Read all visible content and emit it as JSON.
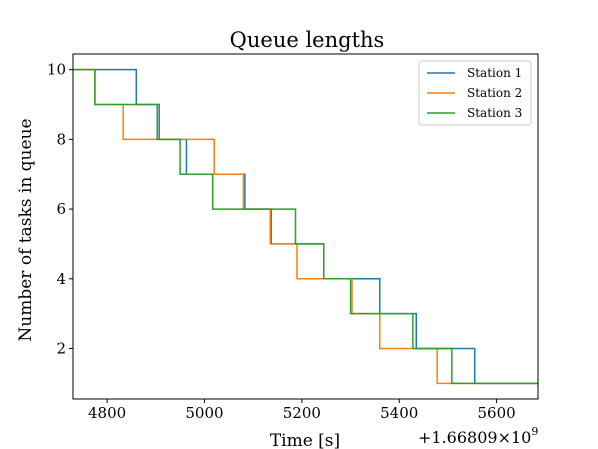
{
  "chart_data": {
    "type": "line",
    "title": "Queue lengths",
    "xlabel": "Time [s]",
    "ylabel": "Number of tasks in queue",
    "x_offset_label": "+1.66809×10",
    "x_offset_exponent": "9",
    "xlim": [
      4730,
      5685
    ],
    "ylim": [
      0.55,
      10.45
    ],
    "xticks": [
      4800,
      5000,
      5200,
      5400,
      5600
    ],
    "yticks": [
      2,
      4,
      6,
      8,
      10
    ],
    "grid": false,
    "legend_position": "top-right",
    "step": "post",
    "series": [
      {
        "name": "Station 1",
        "color": "#1f77b4",
        "points": [
          [
            4730,
            10
          ],
          [
            4860,
            9
          ],
          [
            4907,
            8
          ],
          [
            4963,
            7
          ],
          [
            5083,
            6
          ],
          [
            5137,
            5
          ],
          [
            5245,
            4
          ],
          [
            5360,
            3
          ],
          [
            5435,
            2
          ],
          [
            5555,
            1
          ],
          [
            5685,
            1
          ]
        ]
      },
      {
        "name": "Station 2",
        "color": "#ff7f0e",
        "points": [
          [
            4730,
            10
          ],
          [
            4775,
            9
          ],
          [
            4833,
            8
          ],
          [
            5020,
            7
          ],
          [
            5080,
            6
          ],
          [
            5135,
            5
          ],
          [
            5190,
            4
          ],
          [
            5303,
            3
          ],
          [
            5360,
            2
          ],
          [
            5478,
            1
          ],
          [
            5685,
            1
          ]
        ]
      },
      {
        "name": "Station 3",
        "color": "#2ca02c",
        "points": [
          [
            4730,
            10
          ],
          [
            4775,
            9
          ],
          [
            4903,
            8
          ],
          [
            4950,
            7
          ],
          [
            5017,
            6
          ],
          [
            5187,
            5
          ],
          [
            5245,
            4
          ],
          [
            5300,
            3
          ],
          [
            5428,
            2
          ],
          [
            5508,
            1
          ],
          [
            5685,
            1
          ]
        ]
      }
    ]
  }
}
